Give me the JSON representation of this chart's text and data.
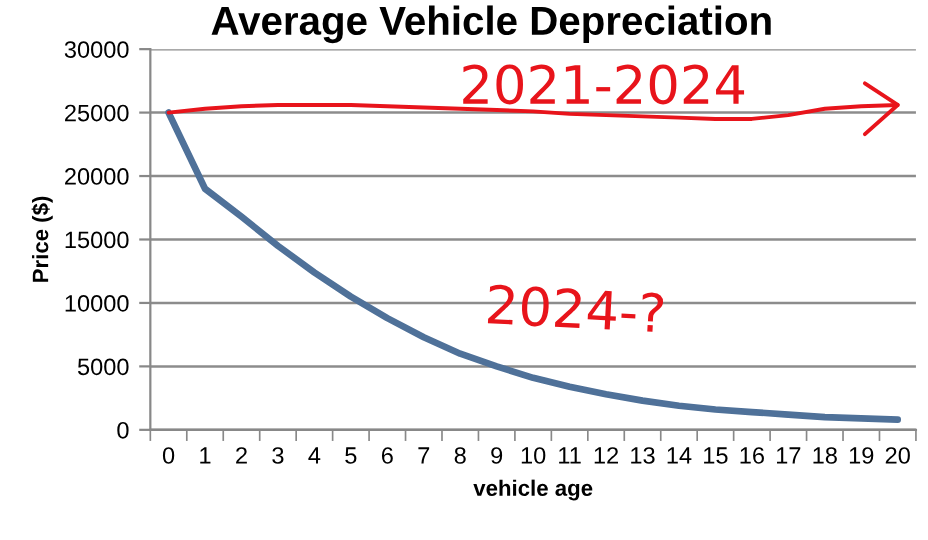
{
  "chart_data": {
    "type": "line",
    "title": "Average Vehicle Depreciation",
    "xlabel": "vehicle age",
    "ylabel": "Price ($)",
    "categories": [
      "0",
      "1",
      "2",
      "3",
      "4",
      "5",
      "6",
      "7",
      "8",
      "9",
      "10",
      "11",
      "12",
      "13",
      "14",
      "15",
      "16",
      "17",
      "18",
      "19",
      "20"
    ],
    "series": [
      {
        "color": "#4f7199",
        "values": [
          25000,
          19000,
          16800,
          14500,
          12400,
          10500,
          8800,
          7300,
          6000,
          5000,
          4100,
          3400,
          2800,
          2300,
          1900,
          1600,
          1400,
          1200,
          1000,
          900,
          800
        ]
      },
      {
        "color": "#e8141b",
        "values": [
          25000,
          25300,
          25500,
          25600,
          25600,
          25600,
          25500,
          25400,
          25300,
          25200,
          25100,
          24900,
          24800,
          24700,
          24600,
          24500,
          24500,
          24800,
          25300,
          25500,
          25600
        ]
      }
    ],
    "ylim": [
      0,
      30000
    ],
    "yticks": [
      0,
      5000,
      10000,
      15000,
      20000,
      25000,
      30000
    ],
    "grid": "y",
    "marker": "none",
    "line_style": "solid",
    "annotations": [
      "2021-2024",
      "2024-?"
    ]
  }
}
